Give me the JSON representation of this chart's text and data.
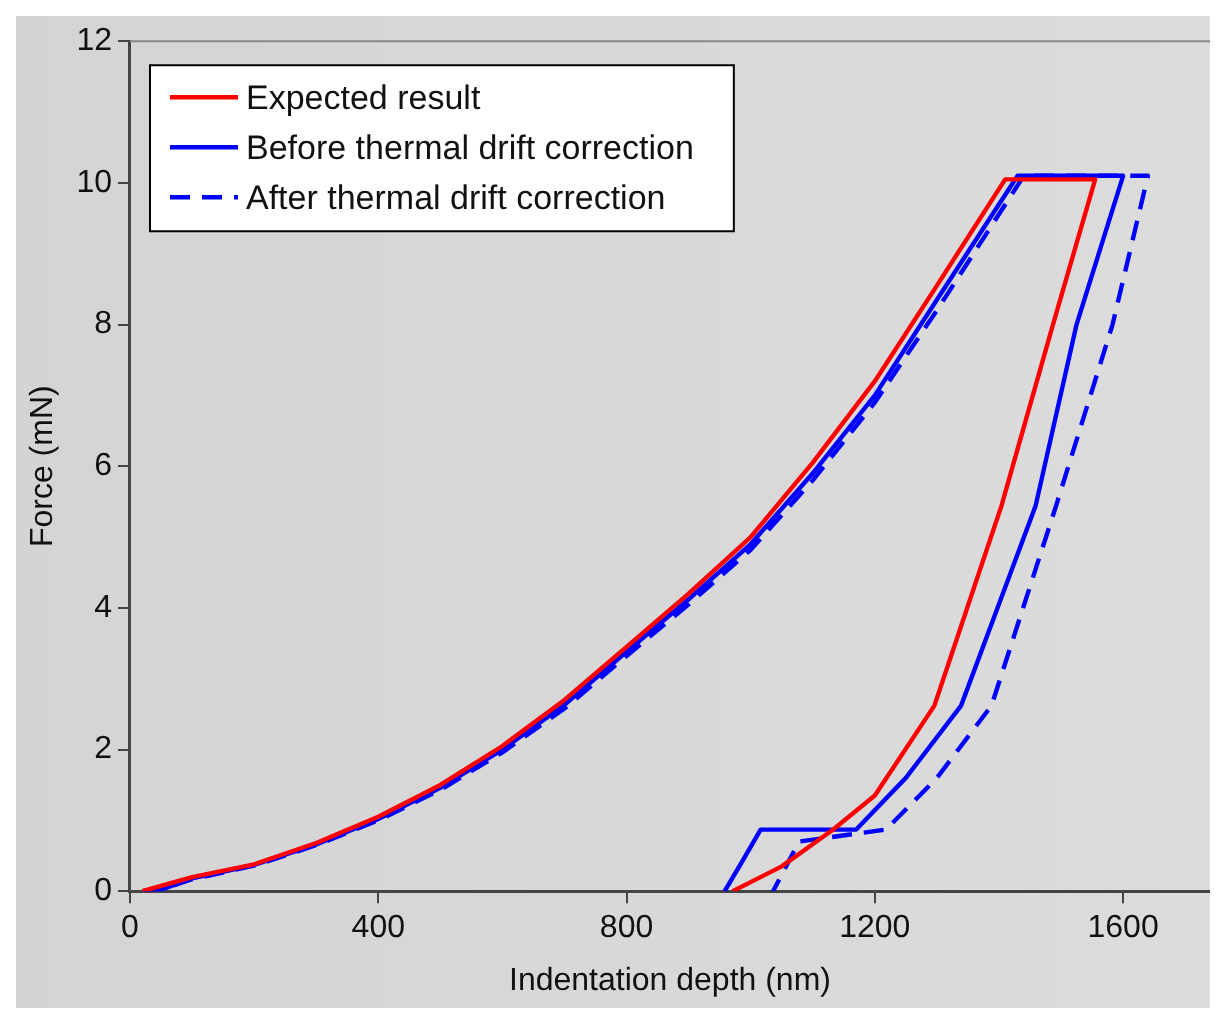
{
  "chart_data": {
    "type": "line",
    "xlabel": "Indentation depth (nm)",
    "ylabel": "Force (mN)",
    "xlim": [
      0,
      1740
    ],
    "xticks": [
      0,
      400,
      800,
      1200,
      1600
    ],
    "ylim": [
      0,
      12
    ],
    "yticks": [
      0,
      2,
      4,
      6,
      8,
      10,
      12
    ],
    "grid": false,
    "legend": "top left",
    "marker": "none",
    "series": [
      {
        "name": "Expected result",
        "color": "#ff0000",
        "line_style": "solid",
        "x": [
          20,
          40,
          100,
          200,
          300,
          400,
          500,
          600,
          700,
          800,
          900,
          1000,
          1100,
          1200,
          1300,
          1410,
          1555,
          1487,
          1404,
          1296,
          1200,
          1133,
          1050,
          971
        ],
        "values": [
          0,
          0.05,
          0.2,
          0.38,
          0.68,
          1.05,
          1.5,
          2.05,
          2.7,
          3.45,
          4.2,
          5.0,
          6.05,
          7.2,
          8.55,
          10.05,
          10.05,
          8,
          5.44,
          2.62,
          1.35,
          0.87,
          0.35,
          0
        ]
      },
      {
        "name": "Before thermal drift correction",
        "color": "#0000ff",
        "line_style": "solid",
        "x": [
          20,
          50,
          100,
          200,
          300,
          400,
          500,
          600,
          700,
          800,
          900,
          1000,
          1100,
          1200,
          1300,
          1430,
          1600,
          1525,
          1459,
          1339,
          1250,
          1170,
          1016,
          985,
          958
        ],
        "values": [
          0,
          0.02,
          0.18,
          0.37,
          0.66,
          1.02,
          1.46,
          2.0,
          2.63,
          3.38,
          4.12,
          4.9,
          5.9,
          7.0,
          8.35,
          10.1,
          10.1,
          8,
          5.44,
          2.62,
          1.6,
          0.87,
          0.87,
          0.4,
          0
        ]
      },
      {
        "name": "After thermal drift correction",
        "color": "#0000ff",
        "line_style": "dashed",
        "x": [
          20,
          50,
          100,
          200,
          300,
          400,
          500,
          600,
          700,
          800,
          900,
          1000,
          1100,
          1200,
          1300,
          1440,
          1640,
          1583,
          1492,
          1388,
          1300,
          1218,
          1078,
          1036
        ],
        "values": [
          0,
          0.02,
          0.17,
          0.36,
          0.65,
          1.0,
          1.43,
          1.96,
          2.58,
          3.32,
          4.05,
          4.82,
          5.8,
          6.9,
          8.2,
          10.1,
          10.1,
          8,
          5.44,
          2.62,
          1.6,
          0.87,
          0.7,
          0
        ]
      }
    ]
  }
}
